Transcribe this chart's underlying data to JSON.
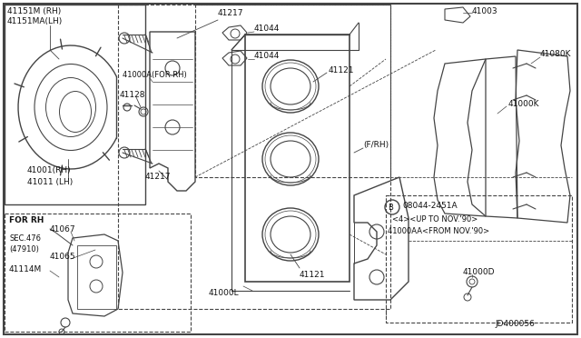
{
  "bg_color": "#f0f0f0",
  "fig_width": 6.4,
  "fig_height": 3.72,
  "dpi": 100,
  "border_color": "#555555",
  "line_color": "#444444",
  "text_color": "#111111",
  "labels": {
    "top_left_1": "41151M (RH)",
    "top_left_2": "41151MA(LH)",
    "bolt_top": "41217",
    "bolt_bottom": "41217",
    "caliper_label": "41000A(FOR RH)",
    "bleeder": "41128",
    "rotor_label1": "41001(RH)",
    "rotor_label2": "41011 (LH)",
    "clip1": "41044",
    "clip2": "41044",
    "shim": "41003",
    "pad_outer": "41080K",
    "pad_inner": "41000K",
    "piston1": "41121",
    "piston2": "41121",
    "f_rh": "(F/RH)",
    "carrier": "41000L",
    "for_rh": "FOR RH",
    "ref1": "41067",
    "sec": "SEC.476",
    "sec2": "(47910)",
    "ref2": "41065",
    "solenoid": "41114M",
    "note_bolt": "B",
    "note1": "08044-2451A",
    "note2": "<4><UP TO NOV.'90>",
    "note3": "41000AA<FROM NOV.'90>",
    "bolt_small": "41000D",
    "drawing_num": "JD400056"
  }
}
